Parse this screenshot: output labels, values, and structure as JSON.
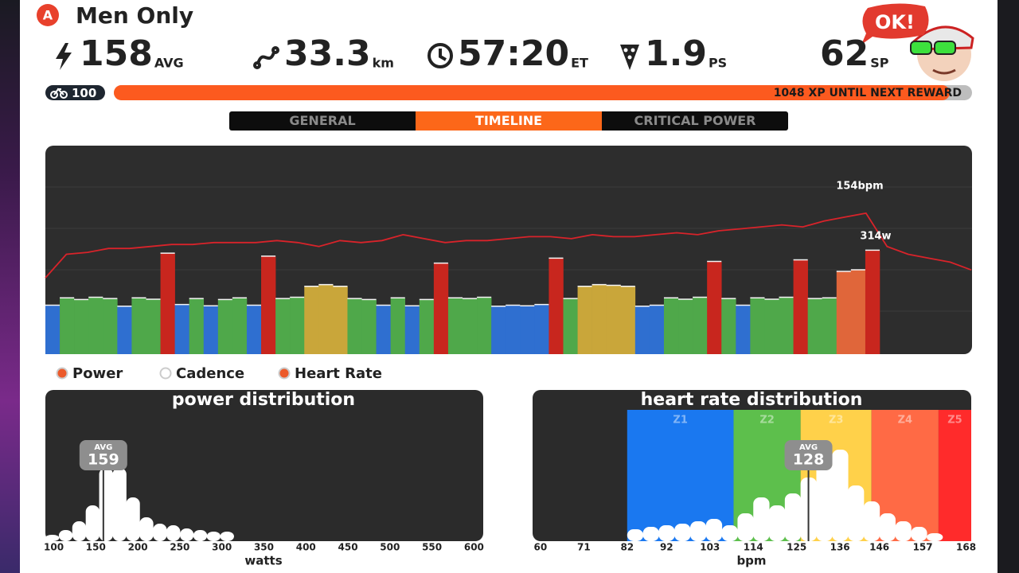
{
  "header": {
    "badge": "A",
    "title": "Men Only",
    "bubble": "OK!"
  },
  "stats": [
    {
      "value": "158",
      "unit": "AVG"
    },
    {
      "value": "33.3",
      "unit": "km"
    },
    {
      "value": "57:20",
      "unit": "ET"
    },
    {
      "value": "1.9",
      "unit": "PS"
    },
    {
      "value": "62",
      "unit": "SP"
    }
  ],
  "level": {
    "value": "100",
    "progress_text": "1048 XP UNTIL NEXT REWARD"
  },
  "tabs": {
    "items": [
      "GENERAL",
      "TIMELINE",
      "CRITICAL POWER"
    ],
    "active": 1
  },
  "timeline": {
    "annotations": [
      "154bpm",
      "314w"
    ],
    "power": [
      148,
      170,
      165,
      172,
      168,
      145,
      170,
      166,
      305,
      150,
      168,
      146,
      165,
      170,
      148,
      296,
      168,
      172,
      205,
      210,
      205,
      168,
      165,
      148,
      170,
      146,
      165,
      275,
      170,
      168,
      172,
      145,
      148,
      146,
      150,
      290,
      168,
      205,
      210,
      208,
      205,
      145,
      148,
      170,
      166,
      172,
      280,
      168,
      148,
      170,
      166,
      172,
      285,
      168,
      170,
      250,
      255,
      314
    ],
    "power_ylim": [
      0,
      630
    ],
    "power_zones": {
      "limits": [
        155,
        195,
        240,
        270
      ],
      "colors": [
        "#2f6fd0",
        "#4fa84a",
        "#c9a63a",
        "#e0663a",
        "#c8261e"
      ]
    },
    "heart_rate": [
      88,
      112,
      114,
      118,
      118,
      120,
      122,
      122,
      124,
      124,
      124,
      126,
      124,
      120,
      126,
      124,
      126,
      132,
      128,
      124,
      126,
      126,
      128,
      130,
      130,
      128,
      132,
      130,
      130,
      132,
      134,
      132,
      136,
      138,
      140,
      142,
      140,
      146,
      150,
      154,
      120,
      112,
      108,
      104,
      96
    ],
    "hr_ylim": [
      10,
      223
    ],
    "hr_color": "#d8232a"
  },
  "legend": [
    {
      "label": "Power",
      "checked": true
    },
    {
      "label": "Cadence",
      "checked": false
    },
    {
      "label": "Heart Rate",
      "checked": true
    }
  ],
  "power_distribution": {
    "title": "power distribution",
    "avg_label": "AVG",
    "avg": 159,
    "xlim": [
      90,
      611
    ],
    "xticks": [
      100,
      150,
      200,
      250,
      300,
      350,
      400,
      450,
      500,
      550,
      600
    ],
    "xlabel": "watts",
    "bins": [
      90,
      106,
      122,
      138,
      154,
      170,
      186,
      202,
      218,
      234,
      250,
      266,
      282,
      298,
      314
    ],
    "counts": [
      8,
      14,
      25,
      45,
      92,
      92,
      55,
      30,
      22,
      20,
      16,
      14,
      12,
      12
    ]
  },
  "hr_distribution": {
    "title": "heart rate distribution",
    "avg_label": "AVG",
    "avg": 128,
    "xlim": [
      58,
      169.3
    ],
    "xticks": [
      60,
      71,
      82,
      92,
      103,
      114,
      125,
      136,
      146,
      157,
      168
    ],
    "xlabel": "bpm",
    "zones": {
      "labels": [
        "Z1",
        "Z2",
        "Z3",
        "Z4",
        "Z5"
      ],
      "edges": [
        82,
        109,
        126,
        144,
        161,
        169.3
      ],
      "colors": [
        "#1a78f0",
        "#5dbf4c",
        "#ffd14a",
        "#ff6a45",
        "#ff2b2b"
      ]
    },
    "bins": [
      82,
      86,
      90,
      94,
      98,
      102,
      106,
      110,
      114,
      118,
      122,
      126,
      130,
      134,
      138,
      142,
      146,
      150,
      154,
      158,
      162
    ],
    "counts": [
      15,
      18,
      20,
      22,
      25,
      28,
      20,
      35,
      55,
      45,
      60,
      80,
      100,
      115,
      70,
      50,
      35,
      25,
      18,
      10
    ]
  }
}
